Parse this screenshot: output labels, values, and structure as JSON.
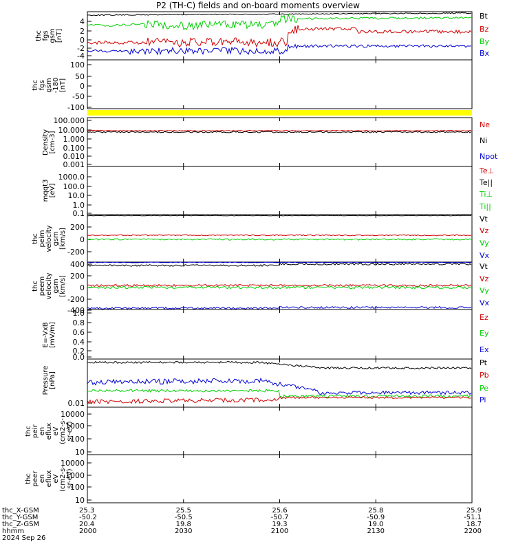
{
  "title": "P2 (TH-C) fields and on-board moments overview",
  "colors": {
    "black": "#000000",
    "red": "#d00000",
    "green": "#00d000",
    "blue": "#0000d0",
    "yellow": "#ffff00"
  },
  "panels": [
    {
      "id": "fgs",
      "ylabel": [
        "thc",
        "fgs",
        "gsm",
        "[nT]"
      ],
      "ticks": [
        "4",
        "2",
        "0",
        "-2",
        "-4"
      ],
      "legend": [
        {
          "t": "Bt",
          "c": "black"
        },
        {
          "t": "Bz",
          "c": "red"
        },
        {
          "t": "By",
          "c": "green"
        },
        {
          "t": "Bx",
          "c": "blue"
        }
      ]
    },
    {
      "id": "fgs-deg",
      "ylabel": [
        "thc",
        "fgs",
        "gsm",
        "-180",
        "[nT]"
      ],
      "ticks": [
        "100",
        "50",
        "0",
        "-50",
        "-100"
      ],
      "legend": []
    },
    {
      "id": "density",
      "ylabel": [
        "Density",
        "[cm-3]"
      ],
      "ticks": [
        "100.000",
        "10.000",
        "1.000",
        "0.100",
        "0.010",
        "0.001"
      ],
      "legend": [
        {
          "t": "Ne",
          "c": "red"
        },
        {
          "t": "Ni",
          "c": "black"
        },
        {
          "t": "Npot",
          "c": "blue"
        }
      ]
    },
    {
      "id": "temp",
      "ylabel": [
        "mqqt3",
        "[eV]"
      ],
      "ticks": [
        "1000.0",
        "100.0",
        "10.0",
        "1.0",
        "0.1"
      ],
      "legend": [
        {
          "t": "Te⊥",
          "c": "red"
        },
        {
          "t": "Te||",
          "c": "black"
        },
        {
          "t": "Ti⊥",
          "c": "green"
        },
        {
          "t": "Ti||",
          "c": "green"
        }
      ]
    },
    {
      "id": "peim",
      "ylabel": [
        "thc",
        "peim",
        "velocity",
        "gsm",
        "[km/s]"
      ],
      "ticks": [
        "200",
        "0",
        "-200"
      ],
      "legend": [
        {
          "t": "Vt",
          "c": "black"
        },
        {
          "t": "Vz",
          "c": "red"
        },
        {
          "t": "Vy",
          "c": "green"
        },
        {
          "t": "Vx",
          "c": "blue"
        }
      ]
    },
    {
      "id": "peem",
      "ylabel": [
        "thc",
        "peem",
        "velocity",
        "gsm",
        "[km/s]"
      ],
      "ticks": [
        "400",
        "200",
        "0",
        "-200",
        "-400"
      ],
      "legend": [
        {
          "t": "Vt",
          "c": "black"
        },
        {
          "t": "Vz",
          "c": "red"
        },
        {
          "t": "Vy",
          "c": "green"
        },
        {
          "t": "Vx",
          "c": "blue"
        }
      ]
    },
    {
      "id": "efield",
      "ylabel": [
        "E=-VxB",
        "[mV/m]"
      ],
      "ticks": [
        "1.0",
        "0.8",
        "0.6",
        "0.4",
        "0.2",
        "0.0"
      ],
      "legend": [
        {
          "t": "Ez",
          "c": "red"
        },
        {
          "t": "Ey",
          "c": "green"
        },
        {
          "t": "Ex",
          "c": "blue"
        }
      ]
    },
    {
      "id": "pressure",
      "ylabel": [
        "Pressure",
        "[nPa]"
      ],
      "ticks": [
        "0.01"
      ],
      "legend": [
        {
          "t": "Pt",
          "c": "black"
        },
        {
          "t": "Pb",
          "c": "red"
        },
        {
          "t": "Pe",
          "c": "green"
        },
        {
          "t": "Pi",
          "c": "blue"
        }
      ]
    },
    {
      "id": "peir",
      "ylabel": [
        "thc",
        "peir",
        "en",
        "eflux",
        "eV",
        "(cm2-s-",
        "sr-eV)"
      ],
      "ticks": [
        "10000",
        "1000",
        "100",
        "10"
      ],
      "legend": []
    },
    {
      "id": "peer",
      "ylabel": [
        "thc",
        "peer",
        "en",
        "eflux",
        "eV",
        "(cm2-s-",
        "sr-eV)"
      ],
      "ticks": [
        "10000",
        "1000",
        "100",
        "10"
      ],
      "legend": []
    }
  ],
  "xaxis": {
    "rows": [
      {
        "label": "thc_X-GSM",
        "values": [
          "25.3",
          "25.5",
          "25.6",
          "25.8",
          "25.9"
        ]
      },
      {
        "label": "thc_Y-GSM",
        "values": [
          "-50.2",
          "-50.5",
          "-50.7",
          "-50.9",
          "-51.1"
        ]
      },
      {
        "label": "thc_Z-GSM",
        "values": [
          "20.4",
          "19.8",
          "19.3",
          "19.0",
          "18.7"
        ]
      },
      {
        "label": "hhmm",
        "values": [
          "2000",
          "2030",
          "2100",
          "2130",
          "2200"
        ]
      }
    ],
    "date": "2024 Sep 26"
  },
  "chart_data": {
    "type": "line",
    "title": "P2 (TH-C) fields and on-board moments overview",
    "x": [
      "2000",
      "2030",
      "2100",
      "2130",
      "2200"
    ],
    "xlabel": "hhmm",
    "panels": [
      {
        "ylabel": "thc fgs gsm [nT]",
        "ylim": [
          -5,
          6
        ],
        "series": [
          {
            "name": "Bt",
            "values": [
              5.3,
              5.3,
              5.6,
              5.5,
              5.6
            ]
          },
          {
            "name": "Bz",
            "values": [
              -0.3,
              -0.5,
              1.8,
              1.5,
              1.2
            ]
          },
          {
            "name": "By",
            "values": [
              3.9,
              4.4,
              5.1,
              5.0,
              5.3
            ]
          },
          {
            "name": "Bx",
            "values": [
              -3.0,
              -3.4,
              -1.2,
              -1.6,
              -1.8
            ]
          }
        ]
      },
      {
        "ylabel": "Density [cm-3]",
        "scale": "log",
        "ylim": [
          0.001,
          100
        ],
        "series": [
          {
            "name": "Ne",
            "values": [
              4.5,
              4.5,
              4.5,
              4.6,
              4.6
            ]
          },
          {
            "name": "Ni",
            "values": [
              4.2,
              4.0,
              3.9,
              3.9,
              4.0
            ]
          }
        ]
      },
      {
        "ylabel": "thc peim velocity gsm [km/s]",
        "ylim": [
          -300,
          400
        ],
        "series": [
          {
            "name": "Vt",
            "values": [
              430,
              430,
              430,
              430,
              430
            ]
          },
          {
            "name": "Vz",
            "values": [
              70,
              70,
              70,
              70,
              70
            ]
          },
          {
            "name": "Vy",
            "values": [
              0,
              0,
              0,
              0,
              0
            ]
          }
        ]
      },
      {
        "ylabel": "thc peem velocity gsm [km/s]",
        "ylim": [
          -480,
          480
        ],
        "series": [
          {
            "name": "Vt",
            "values": [
              370,
              370,
              385,
              385,
              380
            ]
          },
          {
            "name": "Vz",
            "values": [
              20,
              20,
              20,
              20,
              20
            ]
          },
          {
            "name": "Vy",
            "values": [
              0,
              0,
              0,
              0,
              0
            ]
          },
          {
            "name": "Vx",
            "values": [
              -380,
              -380,
              -370,
              -370,
              -370
            ]
          }
        ]
      },
      {
        "ylabel": "Pressure [nPa]",
        "scale": "log",
        "series": [
          {
            "name": "Pt",
            "values": [
              0.35,
              0.38,
              0.2,
              0.19,
              0.2
            ]
          },
          {
            "name": "Pb",
            "values": [
              0.007,
              0.009,
              0.013,
              0.016,
              0.017
            ]
          },
          {
            "name": "Pe",
            "values": [
              0.04,
              0.035,
              0.02,
              0.018,
              0.016
            ]
          },
          {
            "name": "Pi",
            "values": [
              0.08,
              0.07,
              0.028,
              0.025,
              0.035
            ]
          }
        ]
      }
    ]
  }
}
